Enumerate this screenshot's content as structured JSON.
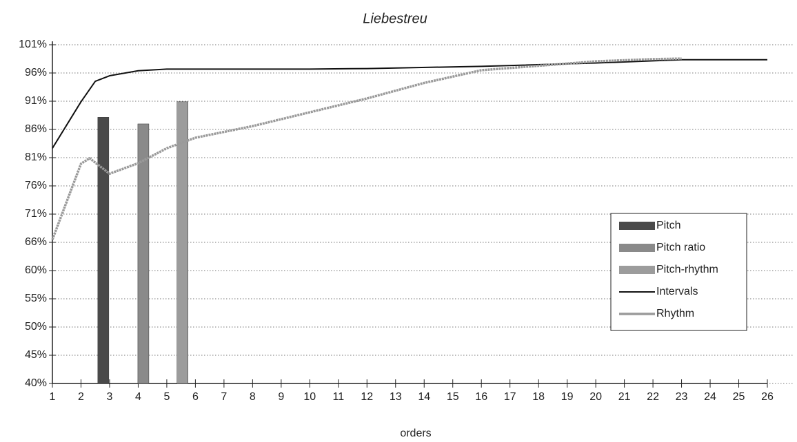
{
  "chart_data": {
    "type": "line",
    "title": "Liebestreu",
    "xlabel": "orders",
    "xlim": [
      1,
      26
    ],
    "xticks": [
      1,
      2,
      3,
      4,
      5,
      6,
      7,
      8,
      9,
      10,
      11,
      12,
      13,
      14,
      15,
      16,
      17,
      18,
      19,
      20,
      21,
      22,
      23,
      24,
      25,
      26
    ],
    "ylim": [
      40,
      101.2
    ],
    "yticks": [
      {
        "value": 40,
        "label": "40%"
      },
      {
        "value": 45.1,
        "label": "45%"
      },
      {
        "value": 50.2,
        "label": "50%"
      },
      {
        "value": 55.3,
        "label": "55%"
      },
      {
        "value": 60.4,
        "label": "60%"
      },
      {
        "value": 65.5,
        "label": "66%"
      },
      {
        "value": 70.6,
        "label": "71%"
      },
      {
        "value": 75.7,
        "label": "76%"
      },
      {
        "value": 80.8,
        "label": "81%"
      },
      {
        "value": 85.9,
        "label": "86%"
      },
      {
        "value": 91,
        "label": "91%"
      },
      {
        "value": 96.1,
        "label": "96%"
      },
      {
        "value": 101.2,
        "label": "101%"
      }
    ],
    "grid": true,
    "legend": "right",
    "series": [
      {
        "name": "Pitch",
        "type": "bar",
        "color": "#4a4a4a",
        "x": [
          2.78
        ],
        "values": [
          88.1
        ]
      },
      {
        "name": "Pitch ratio",
        "type": "bar",
        "color": "#8a8a8a",
        "x": [
          4.18
        ],
        "values": [
          86.9
        ]
      },
      {
        "name": "Pitch-rhythm",
        "type": "bar",
        "color": "#9c9c9c",
        "x": [
          5.55
        ],
        "values": [
          90.9
        ]
      },
      {
        "name": "Intervals",
        "type": "line",
        "color": "#111111",
        "x": [
          1,
          2,
          2.5,
          3,
          4,
          5,
          10,
          12,
          16,
          20,
          23,
          26
        ],
        "values": [
          82.5,
          90.9,
          94.6,
          95.6,
          96.5,
          96.8,
          96.8,
          96.9,
          97.3,
          97.9,
          98.5,
          98.5
        ]
      },
      {
        "name": "Rhythm",
        "type": "line",
        "color": "#9a9a9a",
        "x": [
          1,
          2,
          2.3,
          3,
          4,
          5,
          6,
          8,
          10,
          12,
          14,
          16,
          18,
          20,
          22,
          23
        ],
        "values": [
          66,
          79.7,
          80.7,
          77.9,
          79.8,
          82.5,
          84.4,
          86.5,
          89,
          91.5,
          94.3,
          96.6,
          97.4,
          98.2,
          98.6,
          98.7
        ]
      }
    ]
  }
}
